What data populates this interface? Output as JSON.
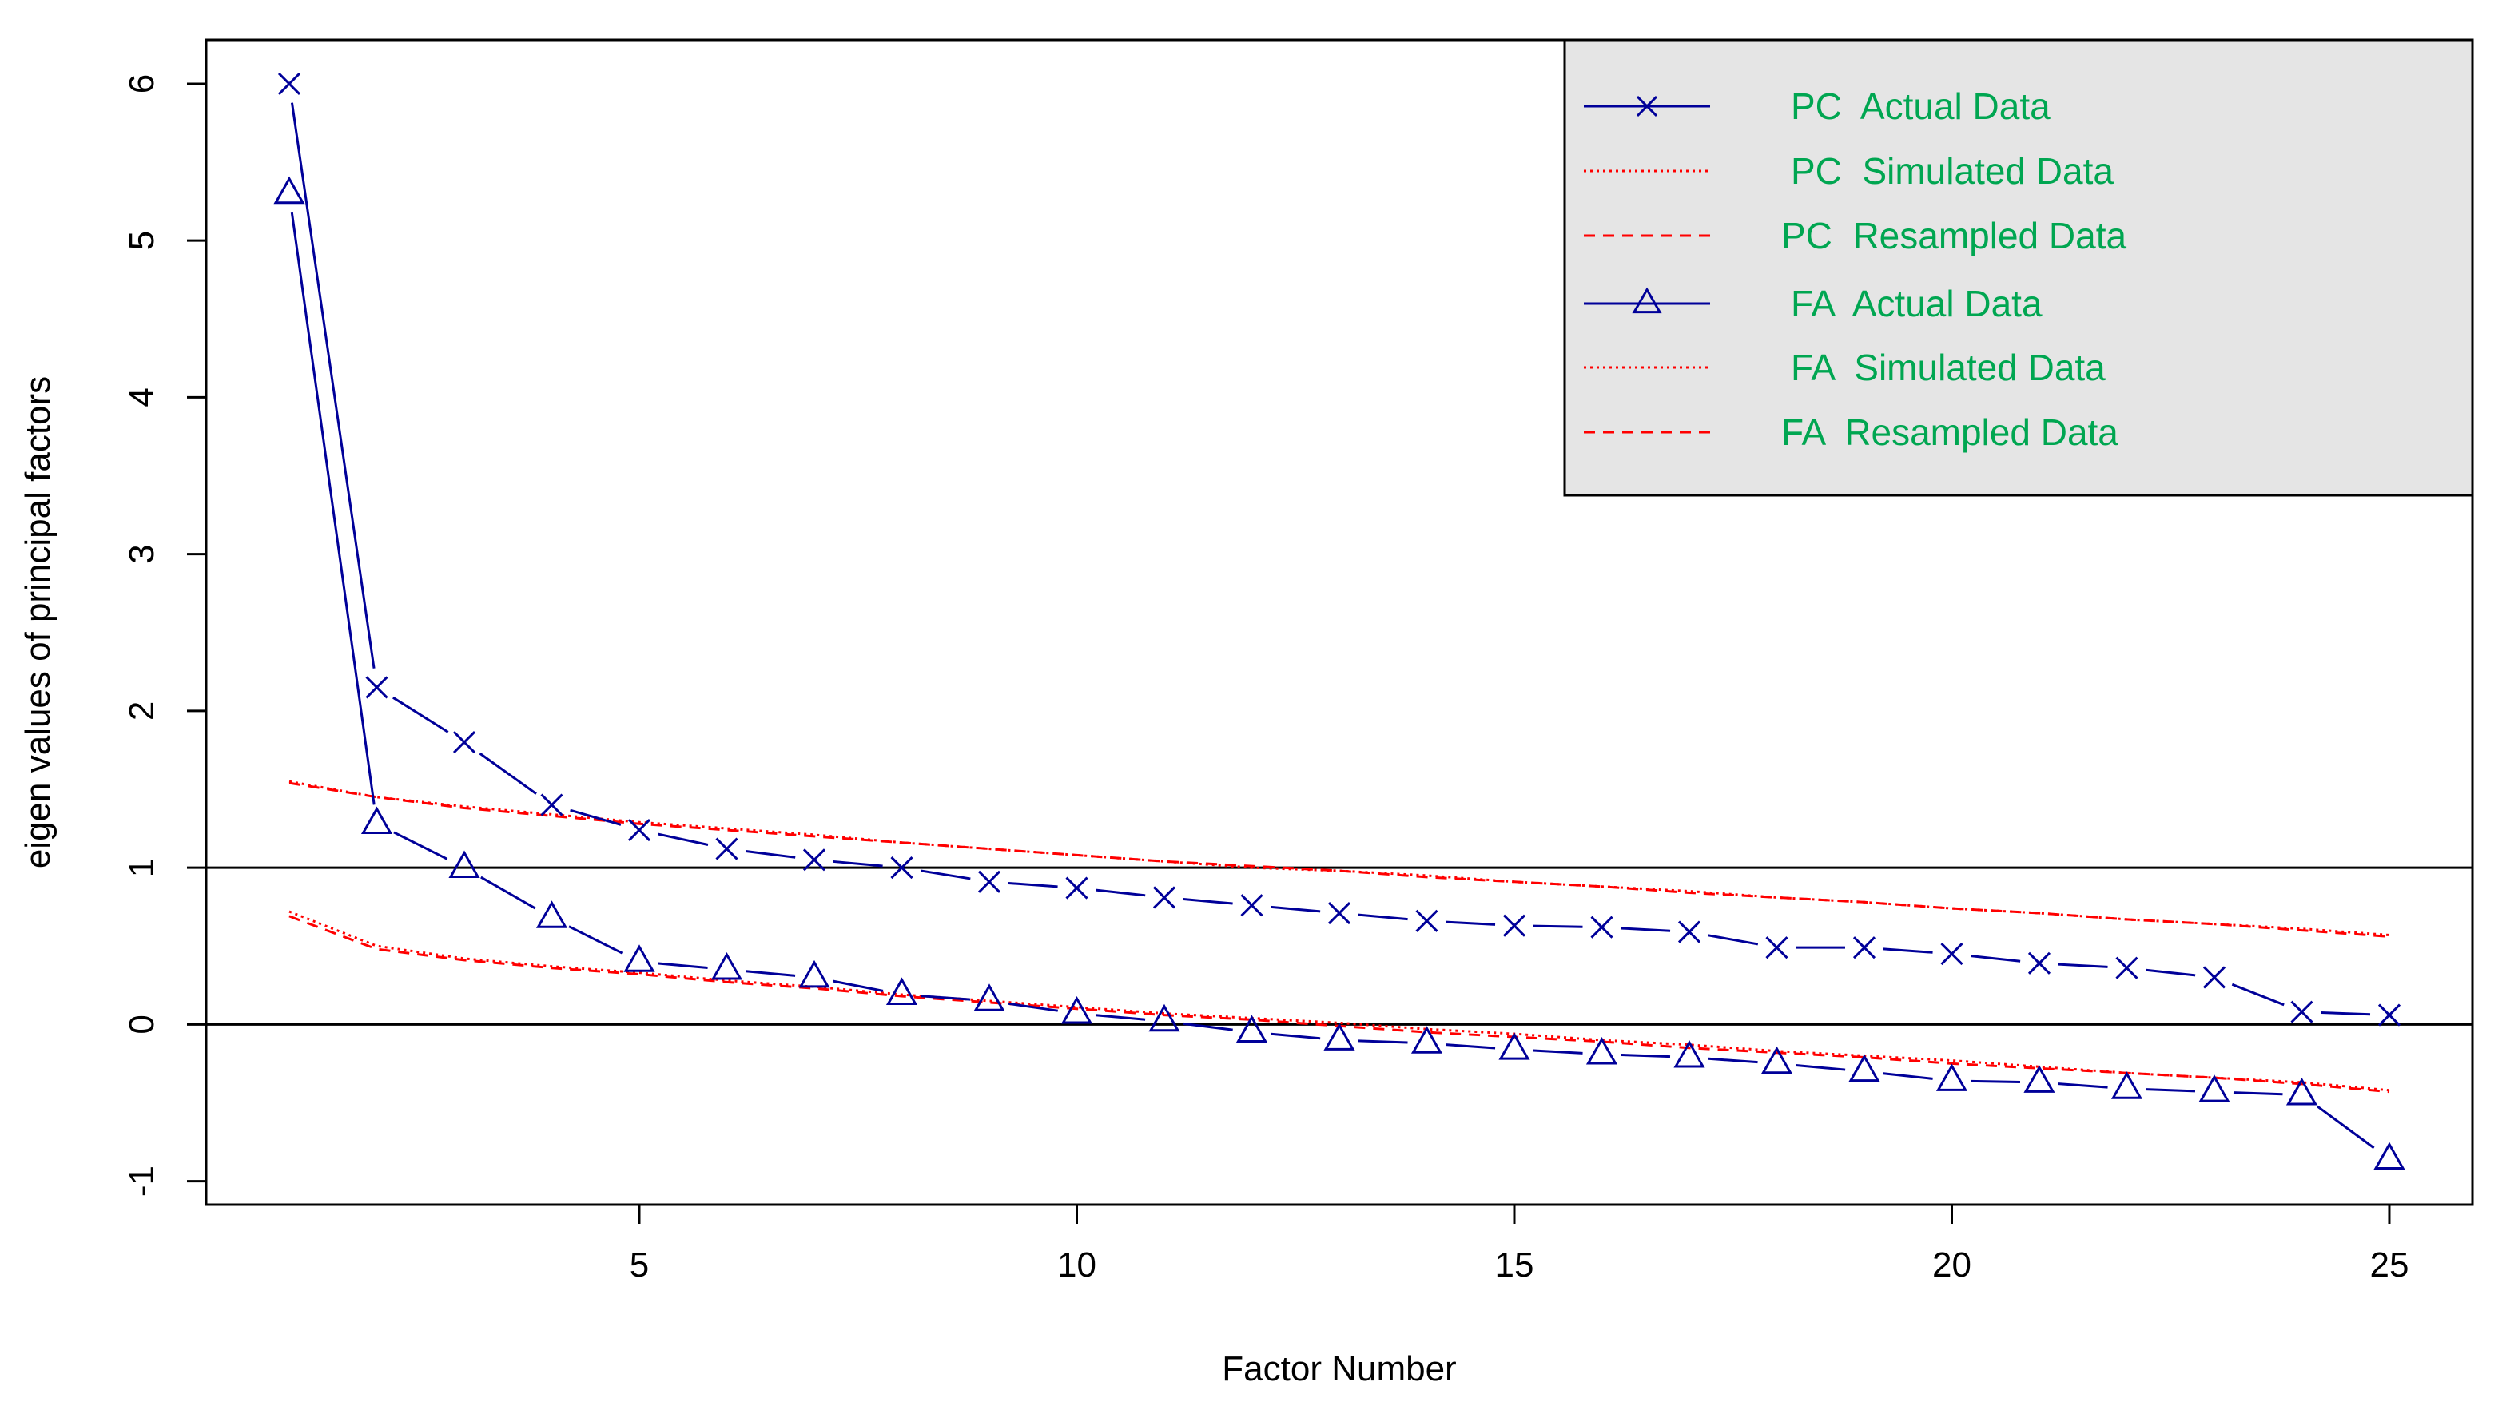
{
  "chart_data": {
    "type": "line",
    "xlabel": "Factor Number",
    "ylabel": "eigen values of principal factors",
    "xlim": [
      0.05,
      25.95
    ],
    "ylim": [
      -1.15,
      6.28
    ],
    "x_ticks": [
      "5",
      "10",
      "15",
      "20",
      "25"
    ],
    "y_ticks": [
      "-1",
      "0",
      "1",
      "2",
      "3",
      "4",
      "5",
      "6"
    ],
    "reference_lines_y": [
      0,
      1
    ],
    "legend_position": "top-right",
    "legend_text_color": "#00A651",
    "legend_background": "#E5E5E5",
    "x": [
      1,
      2,
      3,
      4,
      5,
      6,
      7,
      8,
      9,
      10,
      11,
      12,
      13,
      14,
      15,
      16,
      17,
      18,
      19,
      20,
      21,
      22,
      23,
      24,
      25
    ],
    "series": [
      {
        "name": "PC  Actual Data",
        "color": "#000099",
        "line": "solid",
        "marker": "x",
        "values": [
          6.0,
          2.15,
          1.8,
          1.4,
          1.24,
          1.12,
          1.05,
          1.0,
          0.91,
          0.87,
          0.81,
          0.76,
          0.71,
          0.66,
          0.63,
          0.62,
          0.59,
          0.49,
          0.49,
          0.45,
          0.39,
          0.36,
          0.3,
          0.08,
          0.06
        ]
      },
      {
        "name": "PC  Simulated Data",
        "color": "#FF0000",
        "line": "dotted",
        "marker": "none",
        "values": [
          1.55,
          1.45,
          1.39,
          1.34,
          1.29,
          1.25,
          1.21,
          1.16,
          1.12,
          1.08,
          1.04,
          1.0,
          0.98,
          0.95,
          0.91,
          0.88,
          0.85,
          0.81,
          0.78,
          0.74,
          0.71,
          0.67,
          0.64,
          0.61,
          0.57
        ]
      },
      {
        "name": "PC  Resampled Data",
        "color": "#FF0000",
        "line": "dashed",
        "marker": "none",
        "values": [
          1.54,
          1.45,
          1.38,
          1.33,
          1.28,
          1.24,
          1.2,
          1.16,
          1.12,
          1.08,
          1.04,
          1.01,
          0.98,
          0.94,
          0.91,
          0.88,
          0.84,
          0.81,
          0.78,
          0.74,
          0.71,
          0.67,
          0.64,
          0.6,
          0.56
        ]
      },
      {
        "name": "FA  Actual Data",
        "color": "#000099",
        "line": "solid",
        "marker": "triangle",
        "values": [
          5.3,
          1.28,
          1.0,
          0.68,
          0.4,
          0.35,
          0.3,
          0.19,
          0.15,
          0.07,
          0.02,
          -0.05,
          -0.1,
          -0.12,
          -0.16,
          -0.19,
          -0.21,
          -0.25,
          -0.3,
          -0.36,
          -0.37,
          -0.41,
          -0.43,
          -0.45,
          -0.86
        ]
      },
      {
        "name": "FA  Simulated Data",
        "color": "#FF0000",
        "line": "dotted",
        "marker": "none",
        "values": [
          0.72,
          0.5,
          0.42,
          0.37,
          0.33,
          0.28,
          0.24,
          0.19,
          0.15,
          0.11,
          0.07,
          0.04,
          0.01,
          -0.03,
          -0.06,
          -0.1,
          -0.13,
          -0.17,
          -0.2,
          -0.23,
          -0.27,
          -0.31,
          -0.34,
          -0.37,
          -0.42
        ]
      },
      {
        "name": "FA  Resampled Data",
        "color": "#FF0000",
        "line": "dashed",
        "marker": "none",
        "values": [
          0.69,
          0.48,
          0.41,
          0.36,
          0.32,
          0.27,
          0.23,
          0.18,
          0.14,
          0.1,
          0.06,
          0.03,
          -0.01,
          -0.05,
          -0.08,
          -0.11,
          -0.15,
          -0.18,
          -0.21,
          -0.25,
          -0.28,
          -0.31,
          -0.34,
          -0.38,
          -0.43
        ]
      }
    ]
  }
}
